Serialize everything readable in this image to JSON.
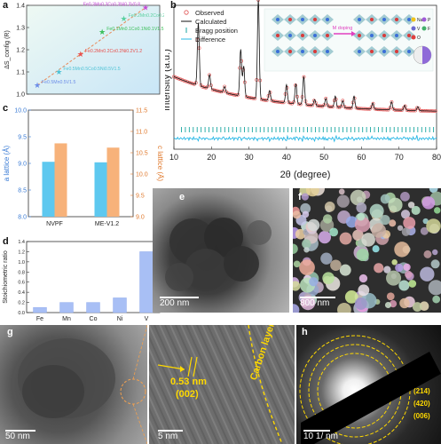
{
  "panel_labels": {
    "a": "a",
    "b": "b",
    "c": "c",
    "d": "d",
    "e": "e",
    "f": "f",
    "g": "g",
    "h": "h"
  },
  "colors": {
    "lattice_a": "#5ec8ef",
    "lattice_c": "#f7b27a",
    "stoich": "#a8bff5",
    "observed": "#e05050",
    "calculated": "#111111",
    "bragg": "#1aa6a0",
    "difference": "#29b8e6"
  },
  "chart_data": [
    {
      "id": "a",
      "type": "scatter",
      "ylabel": "ΔS_config (R)",
      "ylim": [
        1.0,
        1.4
      ],
      "yticks": [
        "1.0",
        "1.1",
        "1.2",
        "1.3",
        "1.4"
      ],
      "points": [
        {
          "label": "Fe0.5Mn0.5V1.5",
          "x": 1,
          "y": 1.04,
          "color": "#6b8ce8"
        },
        {
          "label": "Fe0.5Mn0.5Co0.5Ni0.5V1.5",
          "x": 2,
          "y": 1.1,
          "color": "#4fc3d6"
        },
        {
          "label": "Fe0.2Mn0.2Co0.2Ni0.2V1.2",
          "x": 3,
          "y": 1.18,
          "color": "#e8504c"
        },
        {
          "label": "Fe0.1Mn0.1Co0.1Ni0.1V1.5",
          "x": 4,
          "y": 1.28,
          "color": "#3cbf5a"
        },
        {
          "label": "Fe0.2Mn0.2Co0.2Ni0.2V1.0",
          "x": 5,
          "y": 1.34,
          "color": "#5bd0a0"
        },
        {
          "label": "Fe0.3Mn0.3Co0.3Ni0.3V0.8",
          "x": 6,
          "y": 1.39,
          "color": "#c44bd6"
        }
      ]
    },
    {
      "id": "b",
      "type": "line",
      "xlabel": "2θ (degree)",
      "ylabel": "Intensity (a.u.)",
      "xlim": [
        10,
        80
      ],
      "xticks": [
        "10",
        "20",
        "30",
        "40",
        "50",
        "60",
        "70",
        "80"
      ],
      "legend": [
        "Observed",
        "Calculated",
        "Bragg position",
        "Difference"
      ],
      "inset_legend": [
        "Na",
        "P",
        "V",
        "F",
        "O"
      ],
      "inset_annotation": "M doping",
      "peaks": [
        {
          "x": 16.5,
          "y": 0.62
        },
        {
          "x": 19.5,
          "y": 0.14
        },
        {
          "x": 23.5,
          "y": 0.06
        },
        {
          "x": 27.8,
          "y": 0.46
        },
        {
          "x": 28.6,
          "y": 0.3
        },
        {
          "x": 32.5,
          "y": 0.98
        },
        {
          "x": 35.5,
          "y": 0.1
        },
        {
          "x": 40.0,
          "y": 0.18
        },
        {
          "x": 42.5,
          "y": 0.2
        },
        {
          "x": 44.6,
          "y": 0.28
        },
        {
          "x": 47.5,
          "y": 0.06
        },
        {
          "x": 50.5,
          "y": 0.08
        },
        {
          "x": 53.0,
          "y": 0.11
        },
        {
          "x": 55.0,
          "y": 0.07
        },
        {
          "x": 58.0,
          "y": 0.12
        },
        {
          "x": 63.0,
          "y": 0.06
        },
        {
          "x": 68.0,
          "y": 0.08
        },
        {
          "x": 71.5,
          "y": 0.05
        },
        {
          "x": 75.0,
          "y": 0.04
        }
      ],
      "background_start": 0.4,
      "background_end": 0.06
    },
    {
      "id": "c",
      "type": "bar",
      "categories": [
        "NVPF",
        "ME-V1.2"
      ],
      "series": [
        {
          "name": "a lattice",
          "axis": "left",
          "values": [
            9.03,
            9.02
          ]
        },
        {
          "name": "c lattice",
          "axis": "right",
          "values": [
            10.72,
            10.62
          ]
        }
      ],
      "ylabel": "a lattice (Å)",
      "ylabel2": "c lattice (Å)",
      "ylim": [
        8.0,
        10.0
      ],
      "yticks": [
        "8.0",
        "8.5",
        "9.0",
        "9.5",
        "10.0"
      ],
      "ylim2": [
        9.0,
        11.5
      ],
      "yticks2": [
        "9.0",
        "9.5",
        "10.0",
        "10.5",
        "11.0",
        "11.5"
      ]
    },
    {
      "id": "d",
      "type": "bar",
      "categories": [
        "Fe",
        "Mn",
        "Co",
        "Ni",
        "V"
      ],
      "values": [
        0.1,
        0.2,
        0.2,
        0.29,
        1.2
      ],
      "ylabel": "Stoichiometric ratio",
      "ylim": [
        0,
        1.4
      ],
      "yticks": [
        "0.0",
        "0.2",
        "0.4",
        "0.6",
        "0.8",
        "1.0",
        "1.2",
        "1.4"
      ]
    }
  ],
  "micrographs": {
    "e_scale": "200 nm",
    "f_scale": "800 nm",
    "g_scale": "50 nm",
    "g2_scale": "5 nm",
    "g2_dspacing": "0.53 nm",
    "g2_plane": "(002)",
    "g2_layer": "Carbon layer",
    "h_scale": "10 1/ nm",
    "h_rings": [
      "(214)",
      "(420)",
      "(006)"
    ]
  }
}
